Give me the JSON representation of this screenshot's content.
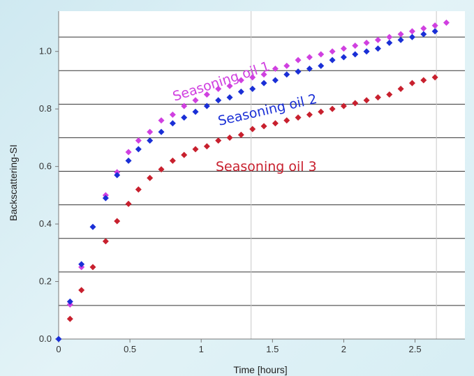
{
  "chart_data": {
    "type": "scatter",
    "xlabel": "Time [hours]",
    "ylabel": "Backscattering-SI",
    "xlim": [
      0,
      2.85
    ],
    "ylim": [
      0,
      1.14
    ],
    "xticks": [
      "0",
      "0.5",
      "1",
      "1.5",
      "2",
      "2.5"
    ],
    "yticks": [
      "0.0",
      "0.2",
      "0.4",
      "0.6",
      "0.8",
      "1.0"
    ],
    "grid": true,
    "series": [
      {
        "name": "Seasoning oil 1",
        "color": "#d040e0",
        "x": [
          0.08,
          0.16,
          0.33,
          0.41,
          0.49,
          0.56,
          0.64,
          0.72,
          0.8,
          0.88,
          0.96,
          1.04,
          1.12,
          1.2,
          1.28,
          1.36,
          1.44,
          1.52,
          1.6,
          1.68,
          1.76,
          1.84,
          1.92,
          2.0,
          2.08,
          2.16,
          2.24,
          2.32,
          2.4,
          2.48,
          2.56,
          2.64,
          2.72
        ],
        "y": [
          0.12,
          0.25,
          0.5,
          0.58,
          0.65,
          0.69,
          0.72,
          0.76,
          0.78,
          0.81,
          0.83,
          0.85,
          0.87,
          0.88,
          0.9,
          0.91,
          0.92,
          0.94,
          0.95,
          0.97,
          0.98,
          0.99,
          1.0,
          1.01,
          1.02,
          1.03,
          1.04,
          1.05,
          1.06,
          1.07,
          1.08,
          1.09,
          1.1
        ]
      },
      {
        "name": "Seasoning oil 2",
        "color": "#1a2fd6",
        "x": [
          0.0,
          0.08,
          0.16,
          0.24,
          0.33,
          0.41,
          0.49,
          0.56,
          0.64,
          0.72,
          0.8,
          0.88,
          0.96,
          1.04,
          1.12,
          1.2,
          1.28,
          1.36,
          1.44,
          1.52,
          1.6,
          1.68,
          1.76,
          1.84,
          1.92,
          2.0,
          2.08,
          2.16,
          2.24,
          2.32,
          2.4,
          2.48,
          2.56,
          2.64
        ],
        "y": [
          0.0,
          0.13,
          0.26,
          0.39,
          0.49,
          0.57,
          0.62,
          0.66,
          0.69,
          0.72,
          0.75,
          0.77,
          0.79,
          0.81,
          0.83,
          0.84,
          0.86,
          0.87,
          0.89,
          0.9,
          0.92,
          0.93,
          0.94,
          0.95,
          0.97,
          0.98,
          0.99,
          1.0,
          1.01,
          1.03,
          1.04,
          1.05,
          1.06,
          1.07
        ]
      },
      {
        "name": "Seasoning oil 3",
        "color": "#c8202e",
        "x": [
          0.08,
          0.16,
          0.24,
          0.33,
          0.41,
          0.49,
          0.56,
          0.64,
          0.72,
          0.8,
          0.88,
          0.96,
          1.04,
          1.12,
          1.2,
          1.28,
          1.36,
          1.44,
          1.52,
          1.6,
          1.68,
          1.76,
          1.84,
          1.92,
          2.0,
          2.08,
          2.16,
          2.24,
          2.32,
          2.4,
          2.48,
          2.56,
          2.64
        ],
        "y": [
          0.07,
          0.17,
          0.25,
          0.34,
          0.41,
          0.47,
          0.52,
          0.56,
          0.59,
          0.62,
          0.64,
          0.66,
          0.67,
          0.69,
          0.7,
          0.71,
          0.73,
          0.74,
          0.75,
          0.76,
          0.77,
          0.78,
          0.79,
          0.8,
          0.81,
          0.82,
          0.83,
          0.84,
          0.85,
          0.87,
          0.89,
          0.9,
          0.91
        ]
      }
    ]
  }
}
